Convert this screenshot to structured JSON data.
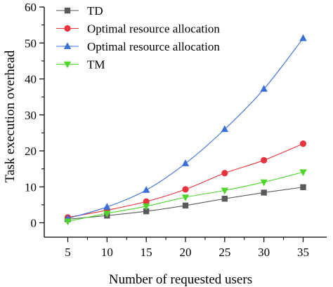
{
  "chart_data": {
    "type": "line",
    "title": "",
    "xlabel": "Number of requested users",
    "ylabel": "Task execution overhead",
    "x": [
      5,
      10,
      15,
      20,
      25,
      30,
      35
    ],
    "xlim": [
      2,
      38
    ],
    "ylim": [
      -4,
      60
    ],
    "xticks": [
      "5",
      "10",
      "15",
      "20",
      "25",
      "30",
      "35"
    ],
    "yticks": [
      "0",
      "10",
      "20",
      "30",
      "40",
      "50",
      "60"
    ],
    "grid": false,
    "legend": "top-left",
    "series": [
      {
        "name": "TD",
        "color": "#5a5a5a",
        "marker": "square",
        "values": [
          1.0,
          2.0,
          3.2,
          4.8,
          6.7,
          8.4,
          9.9
        ]
      },
      {
        "name": "Optimal resource allocation",
        "color": "#e8323c",
        "marker": "circle",
        "values": [
          1.5,
          3.5,
          5.9,
          9.3,
          13.8,
          17.4,
          22.0
        ]
      },
      {
        "name": "Optimal resource allocation",
        "color": "#3a6fd8",
        "marker": "triangle-up",
        "values": [
          1.2,
          4.4,
          9.1,
          16.5,
          26.0,
          37.2,
          51.3
        ]
      },
      {
        "name": "TM",
        "color": "#4fd52c",
        "marker": "triangle-down",
        "values": [
          0.4,
          2.6,
          4.6,
          7.1,
          9.0,
          11.3,
          14.1
        ]
      }
    ]
  }
}
